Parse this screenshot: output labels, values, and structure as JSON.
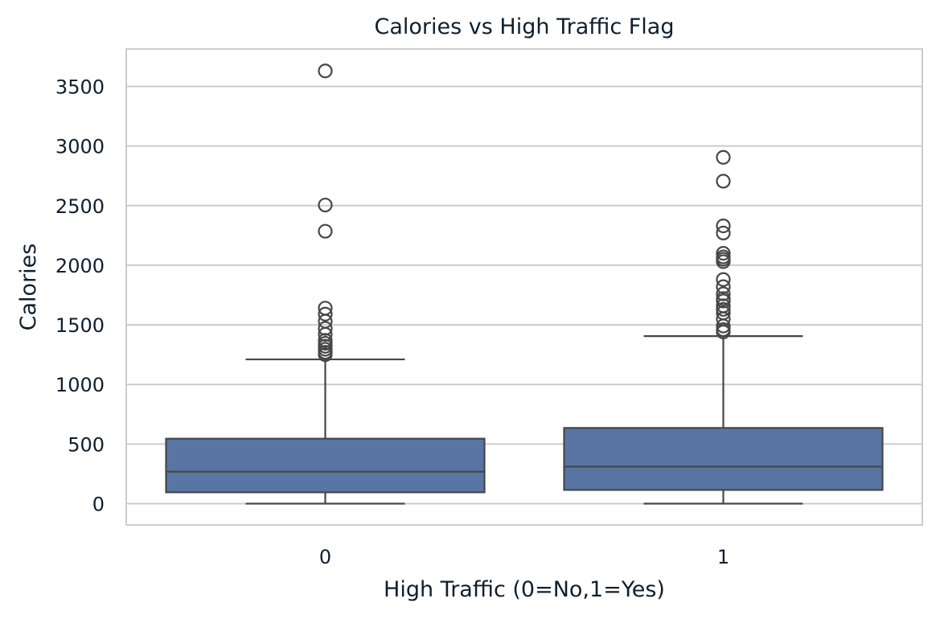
{
  "chart_data": {
    "type": "boxplot",
    "title": "Calories vs High Traffic Flag",
    "xlabel": "High Traffic (0=No,1=Yes)",
    "ylabel": "Calories",
    "categories": [
      "0",
      "1"
    ],
    "ylim": [
      -170,
      3820
    ],
    "yticks": [
      0,
      500,
      1000,
      1500,
      2000,
      2500,
      3000,
      3500
    ],
    "grid": true,
    "box_color": "#5875a4",
    "line_color": "#474747",
    "grid_color": "#cccccc",
    "boxes": [
      {
        "category": "0",
        "whisker_low": 0,
        "q1": 95,
        "median": 268,
        "q3": 545,
        "whisker_high": 1210,
        "outliers": [
          1250,
          1270,
          1295,
          1320,
          1345,
          1370,
          1420,
          1470,
          1530,
          1590,
          1640,
          2285,
          2505,
          3630
        ]
      },
      {
        "category": "1",
        "whisker_low": 0,
        "q1": 115,
        "median": 310,
        "q3": 635,
        "whisker_high": 1405,
        "outliers": [
          1440,
          1460,
          1490,
          1550,
          1600,
          1630,
          1660,
          1700,
          1720,
          1760,
          1820,
          1880,
          2030,
          2050,
          2070,
          2100,
          2270,
          2330,
          2705,
          2905
        ]
      }
    ]
  }
}
